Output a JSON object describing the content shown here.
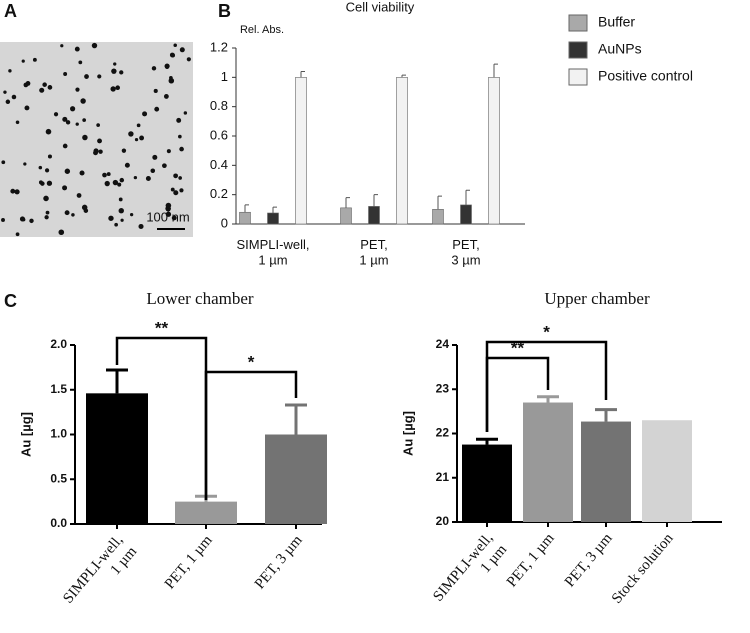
{
  "panel_labels": [
    "A",
    "B",
    "C"
  ],
  "micrograph": {
    "scale_bar": "100 nm"
  },
  "chart_data": [
    {
      "type": "bar",
      "title": "Cell viability",
      "y_label": "Rel. Abs.",
      "categories": [
        "SIMPLI-well,\n1 µm",
        "PET,\n1 µm",
        "PET,\n3 µm"
      ],
      "series": [
        {
          "name": "Buffer",
          "color": "#a9a9a9",
          "values": [
            0.08,
            0.11,
            0.1
          ],
          "errors": [
            0.05,
            0.07,
            0.09
          ]
        },
        {
          "name": "AuNPs",
          "color": "#333333",
          "values": [
            0.075,
            0.12,
            0.13
          ],
          "errors": [
            0.04,
            0.08,
            0.1
          ]
        },
        {
          "name": "Positive control",
          "color": "#f2f2f2",
          "values": [
            1.0,
            1.0,
            1.0
          ],
          "errors": [
            0.04,
            0.015,
            0.09
          ]
        }
      ],
      "ylim": [
        0,
        1.2
      ],
      "yticks": [
        0,
        0.2,
        0.4,
        0.6,
        0.8,
        1,
        1.2
      ],
      "legend": "right"
    },
    {
      "type": "bar",
      "title": "Lower chamber",
      "y_label": "Au [µg]",
      "categories": [
        "SIMPLI-well,\n1 µm",
        "PET, 1 µm",
        "PET, 3 µm"
      ],
      "values": [
        1.46,
        0.25,
        1.0
      ],
      "errors": [
        0.26,
        0.06,
        0.33
      ],
      "colors": [
        "#000000",
        "#999999",
        "#737373"
      ],
      "ylim": [
        0,
        2.0
      ],
      "yticks": [
        {
          "value": 0,
          "label": "0.0"
        },
        0.5,
        {
          "value": 1,
          "label": "1.0"
        },
        1.5,
        {
          "value": 2,
          "label": "2.0"
        }
      ],
      "annotations": [
        "**",
        "*"
      ]
    },
    {
      "type": "bar",
      "title": "Upper chamber",
      "y_label": "Au [µg]",
      "categories": [
        "SIMPLI-well,\n1 µm",
        "PET, 1 µm",
        "PET, 3 µm",
        "Stock solution"
      ],
      "values": [
        21.75,
        22.7,
        22.27,
        22.3
      ],
      "errors": [
        0.12,
        0.13,
        0.27,
        null
      ],
      "colors": [
        "#000000",
        "#999999",
        "#737373",
        "#d3d3d3"
      ],
      "ylim": [
        20,
        24
      ],
      "yticks": [
        20,
        21,
        22,
        23,
        24
      ],
      "annotations": [
        "**",
        "*"
      ]
    }
  ]
}
